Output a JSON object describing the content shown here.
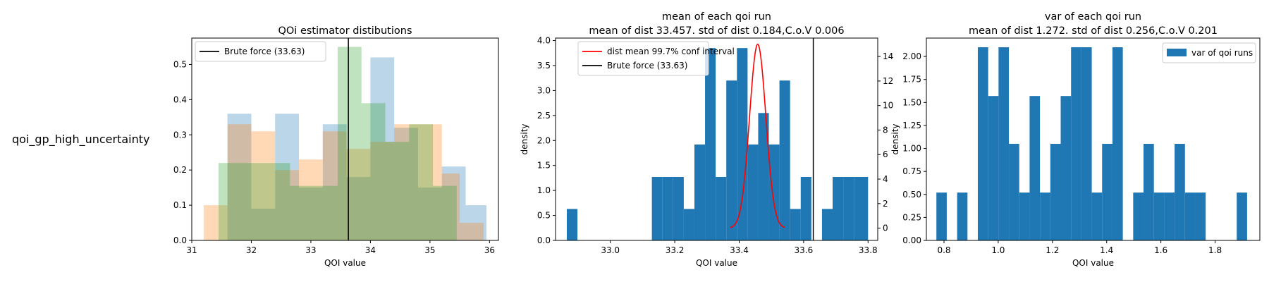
{
  "row_label": "qoi_gp_high_uncertainty",
  "colors": {
    "blue": "#1f77b4",
    "orange": "#ff7f0e",
    "green": "#2ca02c",
    "red": "#ff0000",
    "black": "#000000"
  },
  "chart_data": [
    {
      "type": "bar",
      "subtype": "overlaid-histogram",
      "title": "QOi estimator distibutions",
      "xlabel": "QOI value",
      "ylabel": "",
      "xlim": [
        31.0,
        36.15
      ],
      "ylim": [
        0,
        0.575
      ],
      "xticks": [
        31,
        32,
        33,
        34,
        35,
        36
      ],
      "yticks": [
        0.0,
        0.1,
        0.2,
        0.3,
        0.4,
        0.5
      ],
      "grid": false,
      "legend": "top-left",
      "vline": {
        "x": 33.63,
        "label": "Brute force (33.63)"
      },
      "series": [
        {
          "name": "",
          "color": "#1f77b4",
          "opacity": 0.3,
          "edges": [
            31.6,
            32.0,
            32.4,
            32.8,
            33.2,
            33.6,
            34.0,
            34.4,
            34.8,
            35.2,
            35.6,
            35.95
          ],
          "values": [
            0.36,
            0.09,
            0.36,
            0.15,
            0.33,
            0.18,
            0.52,
            0.32,
            0.15,
            0.21,
            0.1
          ]
        },
        {
          "name": "",
          "color": "#ff7f0e",
          "opacity": 0.3,
          "edges": [
            31.2,
            31.6,
            32.0,
            32.4,
            32.8,
            33.2,
            33.6,
            34.0,
            34.4,
            34.8,
            35.2,
            35.5,
            35.9
          ],
          "values": [
            0.1,
            0.33,
            0.31,
            0.2,
            0.23,
            0.31,
            0.26,
            0.28,
            0.33,
            0.33,
            0.19,
            0.05
          ]
        },
        {
          "name": "",
          "color": "#2ca02c",
          "opacity": 0.3,
          "edges": [
            31.45,
            31.85,
            32.25,
            32.65,
            33.05,
            33.45,
            33.85,
            34.25,
            34.65,
            35.05,
            35.45
          ],
          "values": [
            0.22,
            0.22,
            0.22,
            0.155,
            0.155,
            0.55,
            0.39,
            0.28,
            0.33,
            0.155,
            0.05
          ]
        }
      ]
    },
    {
      "type": "bar",
      "subtype": "histogram-with-line",
      "title": "mean of each qoi run",
      "subtitle": "mean of dist 33.457. std of dist 0.184,C.o.V 0.006",
      "xlabel": "QOI value",
      "ylabel": "density",
      "xlim": [
        32.83,
        33.83
      ],
      "ylim": [
        0,
        4.05
      ],
      "xticks": [
        33.0,
        33.2,
        33.4,
        33.6,
        33.8
      ],
      "yticks": [
        0.0,
        0.5,
        1.0,
        1.5,
        2.0,
        2.5,
        3.0,
        3.5,
        4.0
      ],
      "y2ticks": [
        0,
        2,
        4,
        6,
        8,
        10,
        12,
        14
      ],
      "y2lim": [
        -1,
        15.5
      ],
      "grid": false,
      "legend": "top-left",
      "vline": {
        "x": 33.63,
        "label": "Brute force (33.63)"
      },
      "bar_color": "#1f77b4",
      "edges": [
        32.865,
        32.898,
        32.931,
        32.964,
        32.997,
        33.03,
        33.063,
        33.096,
        33.129,
        33.162,
        33.195,
        33.228,
        33.261,
        33.294,
        33.327,
        33.36,
        33.393,
        33.426,
        33.459,
        33.492,
        33.525,
        33.558,
        33.591,
        33.624,
        33.657,
        33.69,
        33.723,
        33.756,
        33.8
      ],
      "values": [
        0.63,
        0,
        0,
        0,
        0,
        0,
        0,
        0,
        1.27,
        1.27,
        1.27,
        0.63,
        1.92,
        3.85,
        1.27,
        3.2,
        3.85,
        1.92,
        2.55,
        1.92,
        3.2,
        0.63,
        1.27,
        0,
        0.63,
        1.27,
        1.27,
        1.27
      ],
      "line": {
        "name": "dist mean 99.7% conf interval",
        "color": "#ff0000",
        "mu": 33.4575,
        "sigma": 0.0253,
        "peak": 15.0,
        "x_range": [
          33.372,
          33.541
        ]
      }
    },
    {
      "type": "bar",
      "subtype": "histogram",
      "title": "var of each qoi run",
      "subtitle": "mean of dist 1.272. std of dist 0.256,C.o.V 0.201",
      "xlabel": "QOI value",
      "ylabel": "density",
      "xlim": [
        0.735,
        1.965
      ],
      "ylim": [
        0,
        2.2
      ],
      "xticks": [
        0.8,
        1.0,
        1.2,
        1.4,
        1.6,
        1.8
      ],
      "yticks": [
        0.0,
        0.25,
        0.5,
        0.75,
        1.0,
        1.25,
        1.5,
        1.75,
        2.0
      ],
      "grid": false,
      "legend": "top-right",
      "bar_color": "#1f77b4",
      "series_name": "var of qoi runs",
      "edges": [
        0.772,
        0.8102,
        0.8484,
        0.8866,
        0.9248,
        0.963,
        1.0012,
        1.0394,
        1.0776,
        1.1158,
        1.154,
        1.1922,
        1.2304,
        1.2686,
        1.3068,
        1.345,
        1.3832,
        1.4214,
        1.4596,
        1.4978,
        1.536,
        1.5742,
        1.6124,
        1.6506,
        1.6888,
        1.727,
        1.7652,
        1.8034,
        1.8416,
        1.8798,
        1.918
      ],
      "values": [
        0.52,
        0,
        0.52,
        0,
        2.1,
        1.57,
        2.1,
        1.05,
        0.52,
        1.57,
        0.52,
        1.05,
        1.57,
        2.1,
        2.1,
        0.52,
        1.05,
        2.1,
        0,
        0.52,
        1.05,
        0.52,
        0.52,
        1.05,
        0.52,
        0.52,
        0,
        0,
        0,
        0.52
      ]
    }
  ]
}
